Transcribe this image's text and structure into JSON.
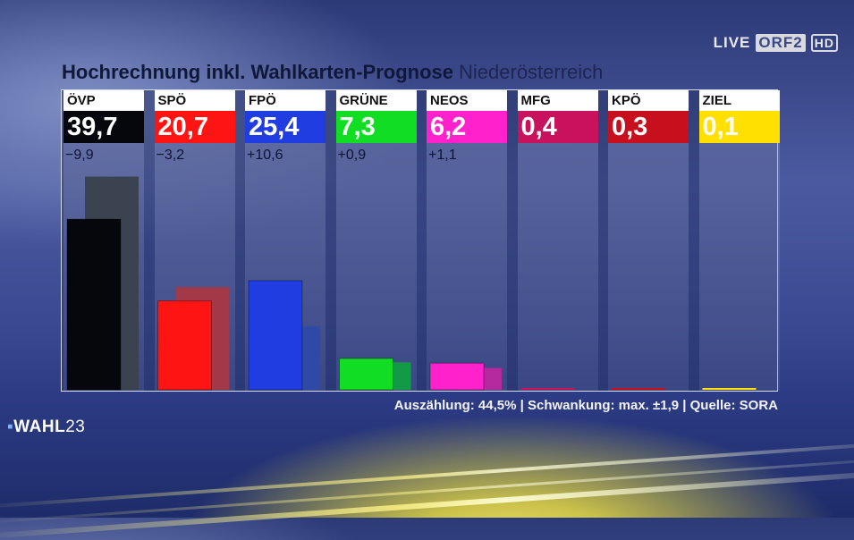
{
  "broadcaster": {
    "live": "LIVE",
    "orf": "ORF",
    "channel": "2",
    "hd": "HD"
  },
  "header": {
    "title": "Hochrechnung inkl. Wahlkarten-Prognose",
    "region": "Niederösterreich"
  },
  "chart_data": {
    "type": "bar",
    "categories": [
      "ÖVP",
      "SPÖ",
      "FPÖ",
      "GRÜNE",
      "NEOS",
      "MFG",
      "KPÖ",
      "ZIEL"
    ],
    "value_labels": [
      "39,7",
      "20,7",
      "25,4",
      "7,3",
      "6,2",
      "0,4",
      "0,3",
      "0,1"
    ],
    "diff_labels": [
      "−9,9",
      "−3,2",
      "+10,6",
      "+0,9",
      "+1,1",
      "",
      "",
      ""
    ],
    "series": [
      {
        "values": [
          39.7,
          20.7,
          25.4,
          7.3,
          6.2,
          0.4,
          0.3,
          0.1
        ]
      },
      {
        "values": [
          49.6,
          23.9,
          14.8,
          6.4,
          5.1,
          0,
          0,
          0
        ]
      }
    ],
    "colors": [
      "#05070c",
      "#ff1414",
      "#1f3de0",
      "#11dd22",
      "#ff22cc",
      "#c8125e",
      "#c80f1e",
      "#ffe000"
    ],
    "colors_previous": [
      "#3c4350",
      "#a23848",
      "#2e4aa6",
      "#139a46",
      "#b42a9e",
      "#8a1a55",
      "#8a1a2a",
      "#c9b400"
    ],
    "ylim": [
      0,
      52
    ],
    "legend": "none",
    "grid": false
  },
  "footer": {
    "text": "Auszählung: 44,5% | Schwankung: max. ±1,9 | Quelle: SORA"
  },
  "brand": {
    "prefix": "WAHL",
    "year": "23"
  }
}
